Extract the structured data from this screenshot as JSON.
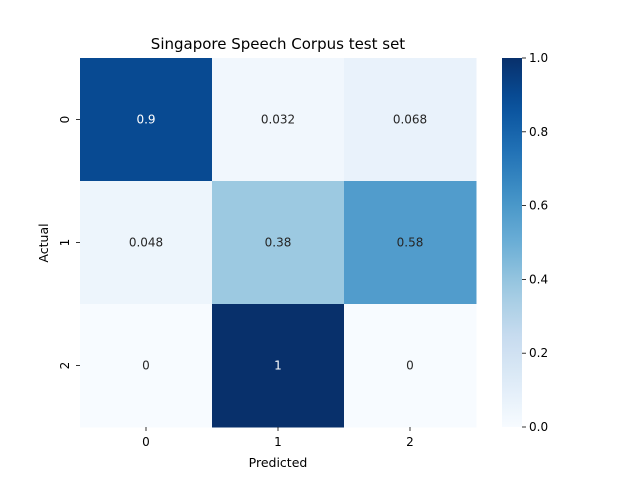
{
  "chart_data": {
    "type": "heatmap",
    "title": "Singapore Speech Corpus test set",
    "xlabel": "Predicted",
    "ylabel": "Actual",
    "x_categories": [
      "0",
      "1",
      "2"
    ],
    "y_categories": [
      "0",
      "1",
      "2"
    ],
    "values": [
      [
        0.9,
        0.032,
        0.068
      ],
      [
        0.048,
        0.38,
        0.58
      ],
      [
        0,
        1,
        0
      ]
    ],
    "cell_labels": [
      [
        "0.9",
        "0.032",
        "0.068"
      ],
      [
        "0.048",
        "0.38",
        "0.58"
      ],
      [
        "0",
        "1",
        "0"
      ]
    ],
    "colormap": "Blues",
    "colorbar": {
      "vmin": 0.0,
      "vmax": 1.0,
      "ticks": [
        0.0,
        0.2,
        0.4,
        0.6,
        0.8,
        1.0
      ],
      "tick_labels": [
        "0.0",
        "0.2",
        "0.4",
        "0.6",
        "0.8",
        "1.0"
      ]
    }
  }
}
